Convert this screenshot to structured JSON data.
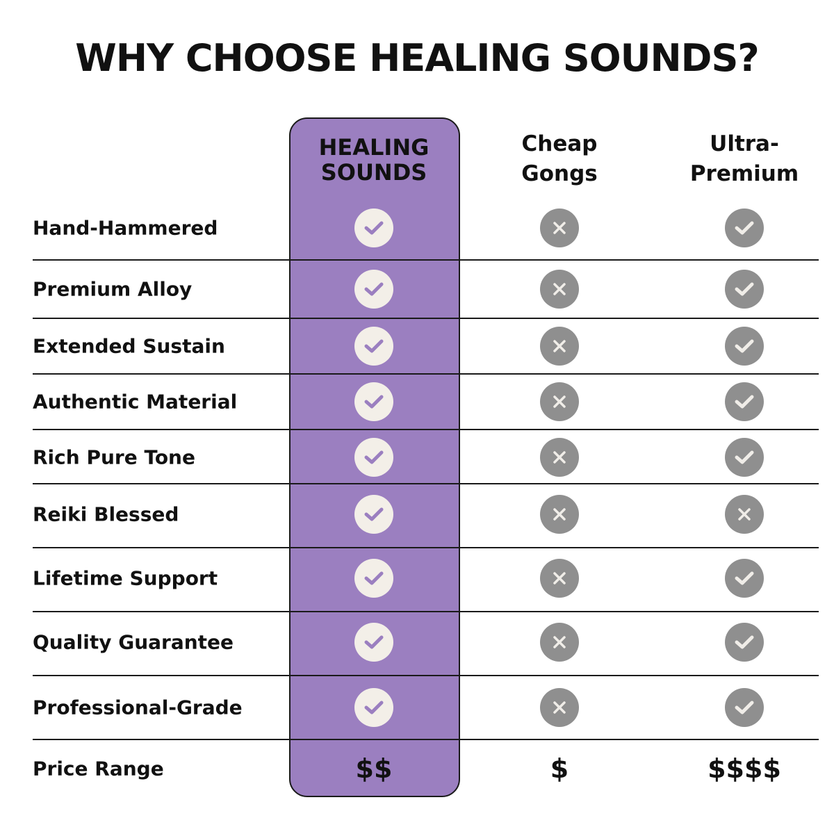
{
  "title": "WHY CHOOSE HEALING SOUNDS?",
  "colors": {
    "highlight": "#9b7fc0",
    "icon_gray": "#8f8f8f",
    "icon_light": "#f3efe8"
  },
  "columns": [
    {
      "label": "HEALING SOUNDS",
      "highlighted": true
    },
    {
      "label": "Cheap Gongs"
    },
    {
      "label": "Ultra-Premium"
    }
  ],
  "rows": [
    {
      "feature": "Hand-Hammered",
      "values": [
        "check",
        "cross",
        "check"
      ]
    },
    {
      "feature": "Premium Alloy",
      "values": [
        "check",
        "cross",
        "check"
      ]
    },
    {
      "feature": "Extended Sustain",
      "values": [
        "check",
        "cross",
        "check"
      ]
    },
    {
      "feature": "Authentic Material",
      "values": [
        "check",
        "cross",
        "check"
      ]
    },
    {
      "feature": "Rich Pure Tone",
      "values": [
        "check",
        "cross",
        "check"
      ]
    },
    {
      "feature": "Reiki Blessed",
      "values": [
        "check",
        "cross",
        "cross"
      ]
    },
    {
      "feature": "Lifetime Support",
      "values": [
        "check",
        "cross",
        "check"
      ]
    },
    {
      "feature": "Quality Guarantee",
      "values": [
        "check",
        "cross",
        "check"
      ]
    },
    {
      "feature": "Professional-Grade",
      "values": [
        "check",
        "cross",
        "check"
      ]
    }
  ],
  "price_row": {
    "feature": "Price Range",
    "values": [
      "$$",
      "$",
      "$$$$"
    ]
  }
}
